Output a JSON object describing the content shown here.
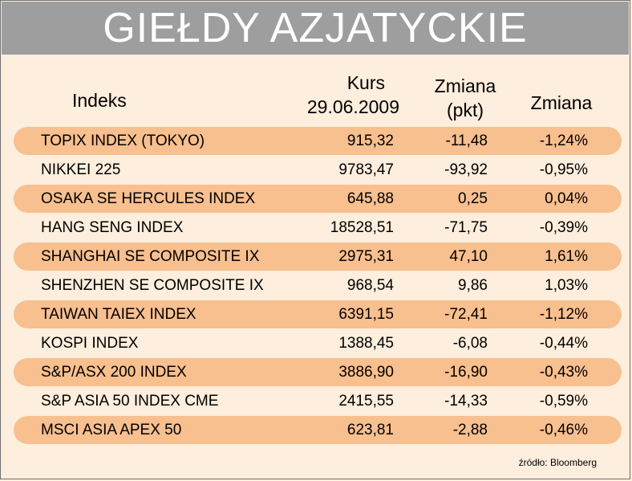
{
  "title": "GIEŁDY AZJATYCKIE",
  "headers": {
    "index": "Indeks",
    "rate_line1": "Kurs",
    "rate_line2": "29.06.2009",
    "change_pts_line1": "Zmiana",
    "change_pts_line2": "(pkt)",
    "change_pct": "Zmiana"
  },
  "rows": [
    {
      "name": "TOPIX INDEX (TOKYO)",
      "rate": "915,32",
      "change_pts": "-11,48",
      "change_pct": "-1,24%"
    },
    {
      "name": "NIKKEI 225",
      "rate": "9783,47",
      "change_pts": "-93,92",
      "change_pct": "-0,95%"
    },
    {
      "name": "OSAKA SE HERCULES INDEX",
      "rate": "645,88",
      "change_pts": "0,25",
      "change_pct": "0,04%"
    },
    {
      "name": "HANG SENG INDEX",
      "rate": "18528,51",
      "change_pts": "-71,75",
      "change_pct": "-0,39%"
    },
    {
      "name": "SHANGHAI SE COMPOSITE IX",
      "rate": "2975,31",
      "change_pts": "47,10",
      "change_pct": "1,61%"
    },
    {
      "name": "SHENZHEN SE COMPOSITE IX",
      "rate": "968,54",
      "change_pts": "9,86",
      "change_pct": "1,03%"
    },
    {
      "name": "TAIWAN TAIEX INDEX",
      "rate": "6391,15",
      "change_pts": "-72,41",
      "change_pct": "-1,12%"
    },
    {
      "name": "KOSPI INDEX",
      "rate": "1388,45",
      "change_pts": "-6,08",
      "change_pct": "-0,44%"
    },
    {
      "name": "S&P/ASX 200 INDEX",
      "rate": "3886,90",
      "change_pts": "-16,90",
      "change_pct": "-0,43%"
    },
    {
      "name": "S&P ASIA 50 INDEX CME",
      "rate": "2415,55",
      "change_pts": "-14,33",
      "change_pct": "-0,59%"
    },
    {
      "name": "MSCI ASIA APEX 50",
      "rate": "623,81",
      "change_pts": "-2,88",
      "change_pct": "-0,46%"
    }
  ],
  "source": "źródło: Bloomberg",
  "colors": {
    "background": "#fdeedd",
    "title_bar": "#9e9e9e",
    "band": "#f8bf8f"
  }
}
